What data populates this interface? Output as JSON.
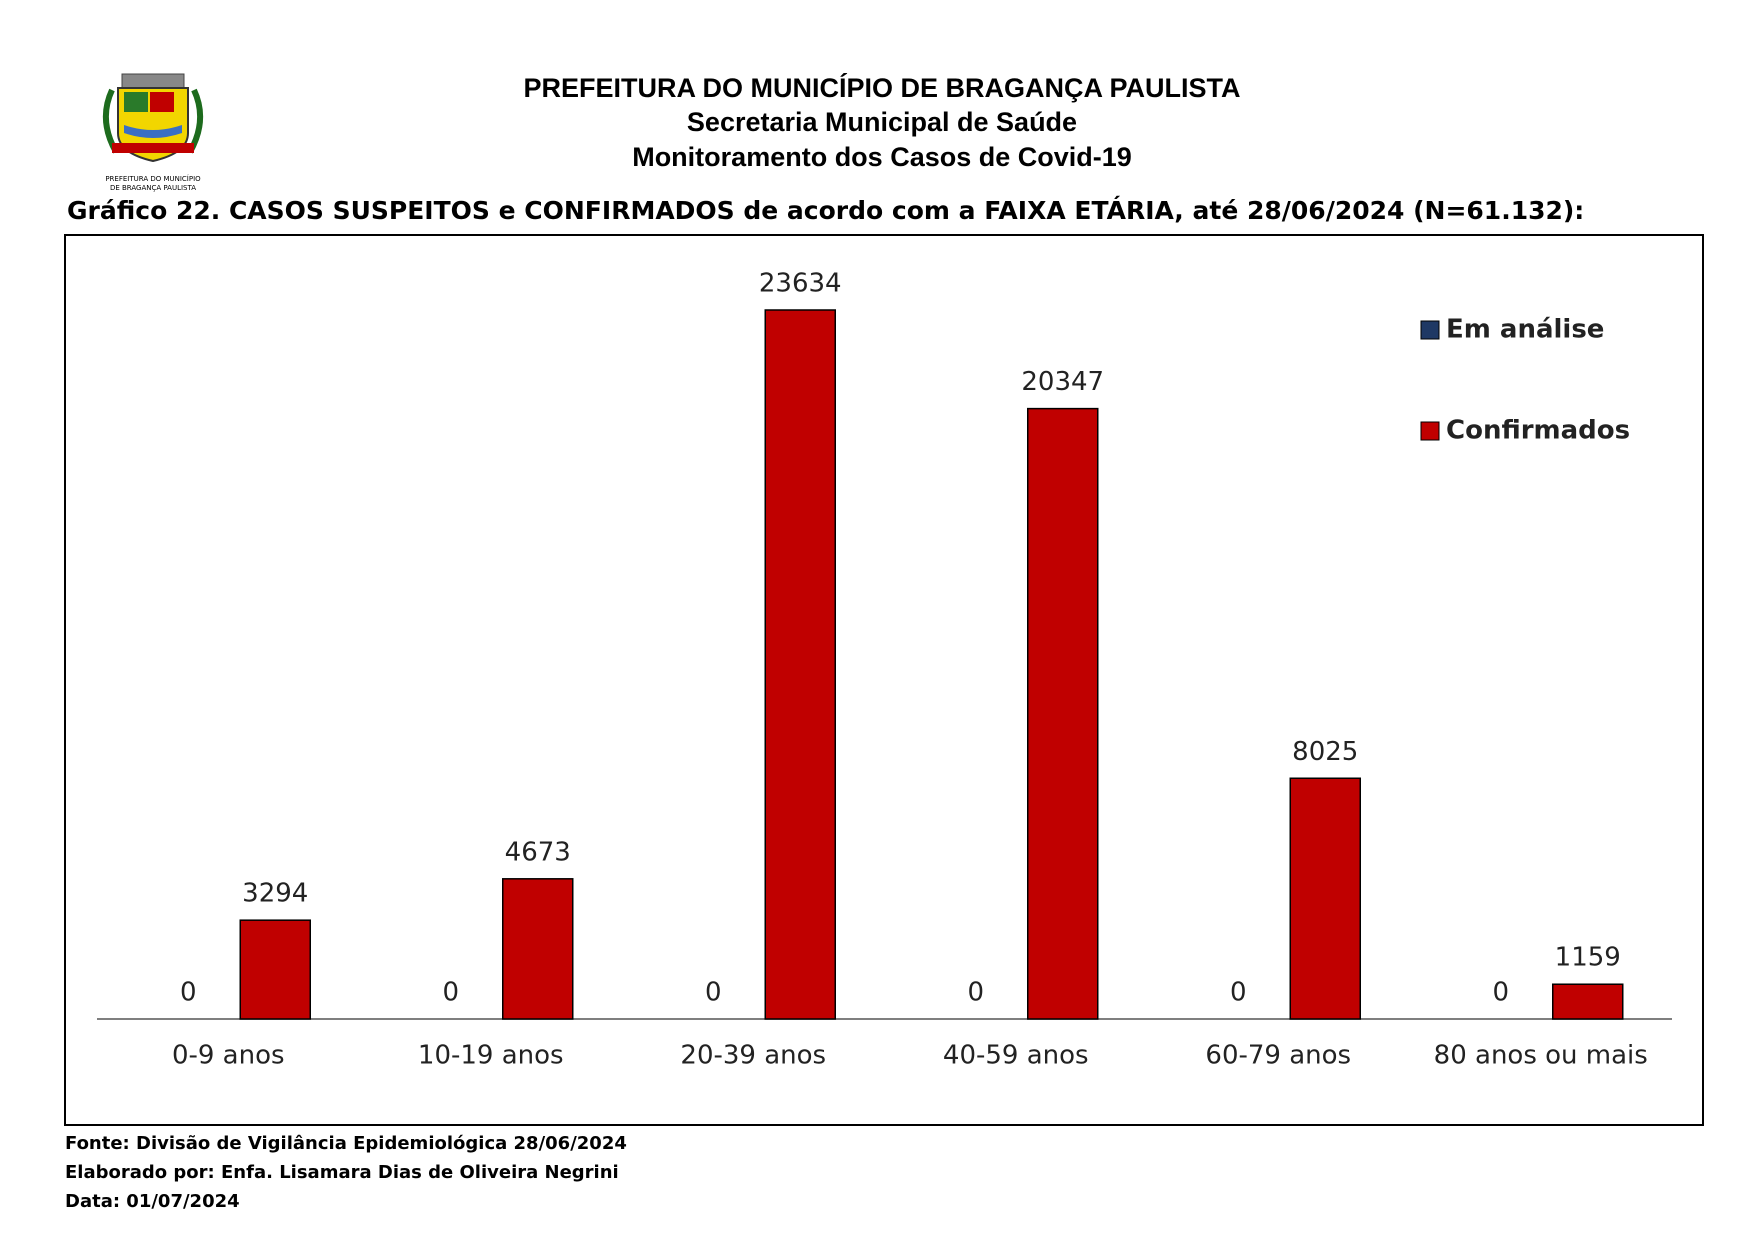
{
  "header": {
    "title": "PREFEITURA DO MUNICÍPIO DE BRAGANÇA PAULISTA",
    "subtitle": "Secretaria Municipal de Saúde",
    "subtitle2": "Monitoramento dos Casos de Covid-19",
    "logo_caption": [
      "PREFEITURA DO MUNICÍPIO",
      "DE BRAGANÇA PAULISTA"
    ]
  },
  "chart_data": {
    "type": "bar",
    "title": "Gráfico 22. CASOS SUSPEITOS e CONFIRMADOS de acordo com a FAIXA ETÁRIA, até 28/06/2024 (N=61.132):",
    "categories": [
      "0-9 anos",
      "10-19 anos",
      "20-39 anos",
      "40-59 anos",
      "60-79 anos",
      "80 anos ou mais"
    ],
    "series": [
      {
        "name": "Em análise",
        "color": "#1f3864",
        "values": [
          0,
          0,
          0,
          0,
          0,
          0
        ]
      },
      {
        "name": "Confirmados",
        "color": "#c00000",
        "values": [
          3294,
          4673,
          23634,
          20347,
          8025,
          1159
        ]
      }
    ],
    "legend": "top-right",
    "grid": false
  },
  "footer": [
    "Fonte: Divisão de Vigilância Epidemiológica 28/06/2024",
    "Elaborado por: Enfa. Lisamara Dias de Oliveira Negrini",
    "Data: 01/07/2024"
  ]
}
